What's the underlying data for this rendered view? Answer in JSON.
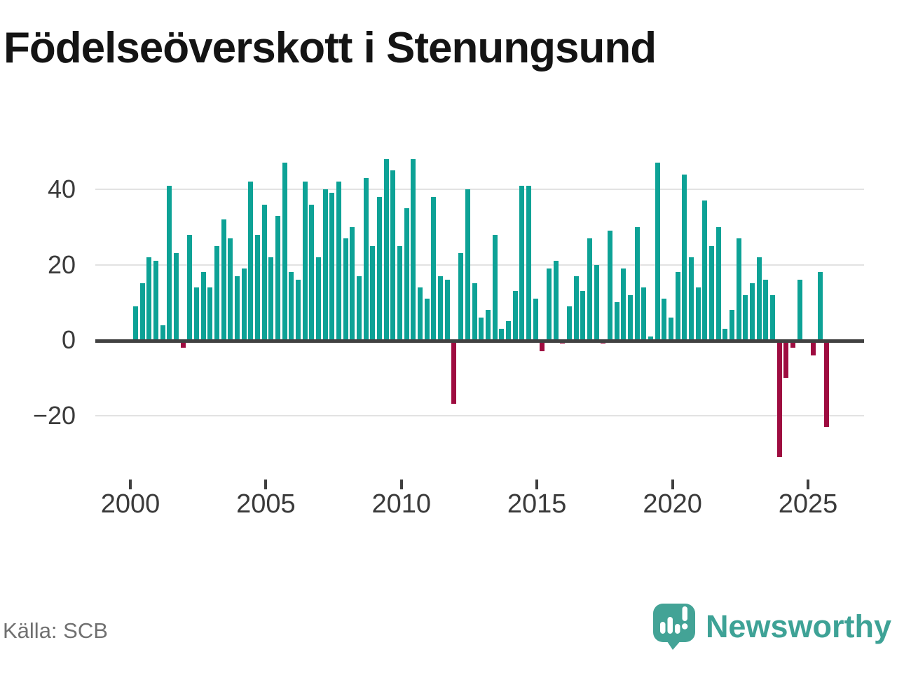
{
  "title": "Födelseöverskott i Stenungsund",
  "source": "Källa: SCB",
  "branding": {
    "name": "Newsworthy",
    "icon": "newsworthy-speech-bubble-barchart-icon",
    "brand_color": "#3ea296"
  },
  "chart_data": {
    "type": "bar",
    "title": "Födelseöverskott i Stenungsund",
    "xlabel": "",
    "ylabel": "",
    "unit_period": "quarter",
    "grid": "horizontal",
    "legend": "none",
    "ylim": [
      -35,
      50
    ],
    "y_ticks": [
      {
        "label": "40",
        "value": 40
      },
      {
        "label": "20",
        "value": 20
      },
      {
        "label": "0",
        "value": 0
      },
      {
        "label": "−20",
        "value": -20
      }
    ],
    "x_ticks": [
      {
        "label": "2000",
        "year": 2000
      },
      {
        "label": "2005",
        "year": 2005
      },
      {
        "label": "2010",
        "year": 2010
      },
      {
        "label": "2015",
        "year": 2015
      },
      {
        "label": "2020",
        "year": 2020
      },
      {
        "label": "2025",
        "year": 2025
      }
    ],
    "colors": {
      "positive": "#0da296",
      "negative": "#9e0c40"
    },
    "x": [
      "2000 Q1",
      "2000 Q2",
      "2000 Q3",
      "2000 Q4",
      "2001 Q1",
      "2001 Q2",
      "2001 Q3",
      "2001 Q4",
      "2002 Q1",
      "2002 Q2",
      "2002 Q3",
      "2002 Q4",
      "2003 Q1",
      "2003 Q2",
      "2003 Q3",
      "2003 Q4",
      "2004 Q1",
      "2004 Q2",
      "2004 Q3",
      "2004 Q4",
      "2005 Q1",
      "2005 Q2",
      "2005 Q3",
      "2005 Q4",
      "2006 Q1",
      "2006 Q2",
      "2006 Q3",
      "2006 Q4",
      "2007 Q1",
      "2007 Q2",
      "2007 Q3",
      "2007 Q4",
      "2008 Q1",
      "2008 Q2",
      "2008 Q3",
      "2008 Q4",
      "2009 Q1",
      "2009 Q2",
      "2009 Q3",
      "2009 Q4",
      "2010 Q1",
      "2010 Q2",
      "2010 Q3",
      "2010 Q4",
      "2011 Q1",
      "2011 Q2",
      "2011 Q3",
      "2011 Q4",
      "2012 Q1",
      "2012 Q2",
      "2012 Q3",
      "2012 Q4",
      "2013 Q1",
      "2013 Q2",
      "2013 Q3",
      "2013 Q4",
      "2014 Q1",
      "2014 Q2",
      "2014 Q3",
      "2014 Q4",
      "2015 Q1",
      "2015 Q2",
      "2015 Q3",
      "2015 Q4",
      "2016 Q1",
      "2016 Q2",
      "2016 Q3",
      "2016 Q4",
      "2017 Q1",
      "2017 Q2",
      "2017 Q3",
      "2017 Q4",
      "2018 Q1",
      "2018 Q2",
      "2018 Q3",
      "2018 Q4",
      "2019 Q1",
      "2019 Q2",
      "2019 Q3",
      "2019 Q4",
      "2020 Q1",
      "2020 Q2",
      "2020 Q3",
      "2020 Q4",
      "2021 Q1",
      "2021 Q2",
      "2021 Q3",
      "2021 Q4",
      "2022 Q1",
      "2022 Q2",
      "2022 Q3",
      "2022 Q4",
      "2023 Q1",
      "2023 Q2",
      "2023 Q3",
      "2023 Q4",
      "2024 Q1",
      "2024 Q2",
      "2024 Q3",
      "2024 Q4",
      "2025 Q1",
      "2025 Q2",
      "2025 Q3"
    ],
    "values": [
      9,
      15,
      22,
      21,
      4,
      41,
      23,
      -2,
      28,
      14,
      18,
      14,
      25,
      32,
      27,
      17,
      19,
      42,
      28,
      36,
      22,
      33,
      47,
      18,
      16,
      42,
      36,
      22,
      40,
      39,
      42,
      27,
      30,
      17,
      43,
      25,
      38,
      48,
      45,
      25,
      35,
      48,
      14,
      11,
      38,
      17,
      16,
      -17,
      23,
      40,
      15,
      6,
      8,
      28,
      3,
      5,
      13,
      41,
      41,
      11,
      -3,
      19,
      21,
      -1,
      9,
      17,
      13,
      27,
      20,
      -1,
      29,
      10,
      19,
      12,
      30,
      14,
      1,
      47,
      11,
      6,
      18,
      44,
      22,
      14,
      37,
      25,
      30,
      3,
      8,
      27,
      12,
      15,
      22,
      16,
      12,
      -31,
      -10,
      -2,
      16,
      0,
      -4,
      18,
      -23
    ]
  }
}
